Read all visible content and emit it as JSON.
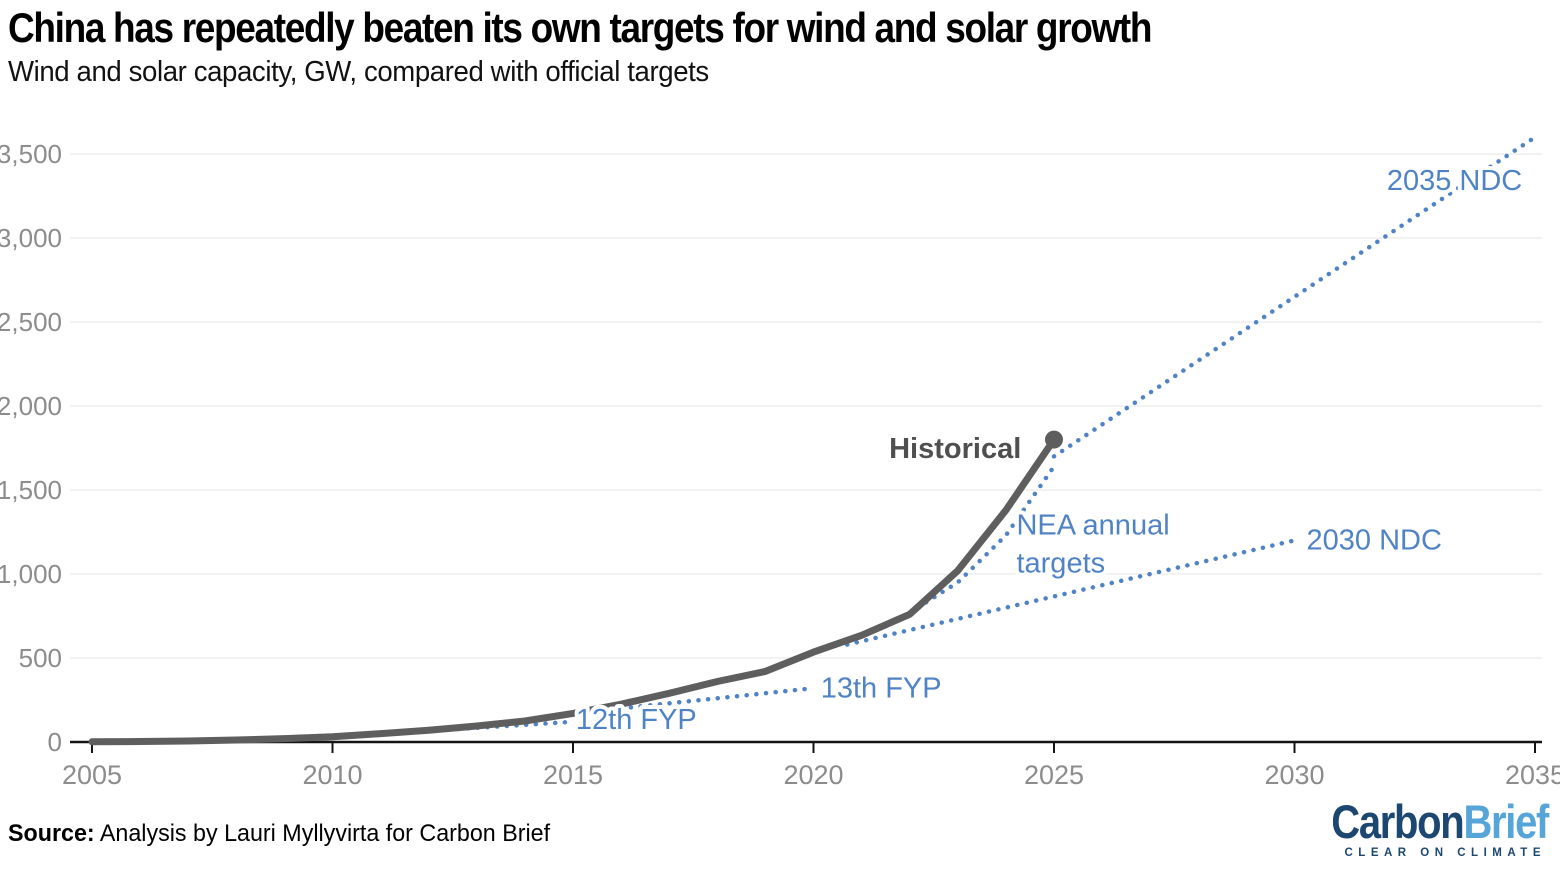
{
  "header": {
    "title": "China has repeatedly beaten its own targets for wind and solar growth",
    "subtitle": "Wind and solar capacity, GW, compared with official targets"
  },
  "footer": {
    "source_label": "Source:",
    "source_text": " Analysis by Lauri Myllyvirta for Carbon Brief"
  },
  "logo": {
    "part1": "Carbon",
    "part2": "Brief",
    "tagline": "CLEAR ON CLIMATE",
    "dark_color": "#1c4770",
    "light_color": "#55a5d9"
  },
  "chart_data": {
    "type": "line",
    "title": "China has repeatedly beaten its own targets for wind and solar growth",
    "subtitle": "Wind and solar capacity, GW, compared with official targets",
    "xlabel": "",
    "ylabel": "Wind and solar capacity, GW",
    "x_range": [
      2005,
      2035
    ],
    "y_range": [
      0,
      3500
    ],
    "grid": "horizontal",
    "legend": "inline-labels",
    "x_ticks": [
      {
        "v": 2005,
        "label": "2005"
      },
      {
        "v": 2010,
        "label": "2010"
      },
      {
        "v": 2015,
        "label": "2015"
      },
      {
        "v": 2020,
        "label": "2020"
      },
      {
        "v": 2025,
        "label": "2025"
      },
      {
        "v": 2030,
        "label": "2030"
      },
      {
        "v": 2035,
        "label": "2035"
      }
    ],
    "y_ticks": [
      {
        "v": 0,
        "label": "0"
      },
      {
        "v": 500,
        "label": "500"
      },
      {
        "v": 1000,
        "label": "1,000"
      },
      {
        "v": 1500,
        "label": "1,500"
      },
      {
        "v": 2000,
        "label": "2,000"
      },
      {
        "v": 2500,
        "label": "2,500"
      },
      {
        "v": 3000,
        "label": "3,000"
      },
      {
        "v": 3500,
        "label": "3,500"
      }
    ],
    "colors": {
      "historical": "#5e5e5e",
      "target_blue": "#5083c6",
      "gridline": "#eaeaea",
      "axis": "#141414",
      "tick_text": "#8c8c8c"
    },
    "series": [
      {
        "name": "12th FYP",
        "style": "dotted",
        "points": [
          [
            2010,
            30
          ],
          [
            2015,
            120
          ]
        ]
      },
      {
        "name": "13th FYP",
        "style": "dotted",
        "points": [
          [
            2015,
            170
          ],
          [
            2020,
            320
          ]
        ]
      },
      {
        "name": "NEA annual targets",
        "style": "dotted",
        "points": [
          [
            2022,
            770
          ],
          [
            2023,
            950
          ],
          [
            2024,
            1230
          ],
          [
            2025,
            1640
          ]
        ]
      },
      {
        "name": "2030 NDC",
        "style": "dotted",
        "points": [
          [
            2020.7,
            580
          ],
          [
            2030,
            1200
          ]
        ]
      },
      {
        "name": "2035 NDC",
        "style": "dotted",
        "points": [
          [
            2025,
            1700
          ],
          [
            2035,
            3600
          ]
        ]
      },
      {
        "name": "Historical",
        "style": "solid",
        "points": [
          [
            2005,
            1
          ],
          [
            2006,
            3
          ],
          [
            2007,
            6
          ],
          [
            2008,
            12
          ],
          [
            2009,
            20
          ],
          [
            2010,
            31
          ],
          [
            2011,
            50
          ],
          [
            2012,
            70
          ],
          [
            2013,
            95
          ],
          [
            2014,
            125
          ],
          [
            2015,
            170
          ],
          [
            2016,
            225
          ],
          [
            2017,
            290
          ],
          [
            2018,
            360
          ],
          [
            2019,
            420
          ],
          [
            2020,
            535
          ],
          [
            2021,
            635
          ],
          [
            2022,
            760
          ],
          [
            2023,
            1020
          ],
          [
            2024,
            1380
          ],
          [
            2025,
            1800
          ]
        ]
      }
    ],
    "endpoint": {
      "x": 2025,
      "y": 1800
    },
    "annotations": [
      {
        "id": "label-historical",
        "lines": [
          "Historical"
        ],
        "x": 2024.32,
        "gw": 1745,
        "anchor": "end",
        "bold": true,
        "color": "#4f4f4f"
      },
      {
        "id": "label-12th-fyp",
        "lines": [
          "12th FYP"
        ],
        "x": 2015.06,
        "gw": 130,
        "anchor": "start",
        "bold": false,
        "color": "#5083c6"
      },
      {
        "id": "label-13th-fyp",
        "lines": [
          "13th FYP"
        ],
        "x": 2020.15,
        "gw": 318,
        "anchor": "start",
        "bold": false,
        "color": "#5083c6"
      },
      {
        "id": "label-nea-annual-targets",
        "lines": [
          "NEA annual",
          "targets"
        ],
        "x": 2024.22,
        "gw": 1290,
        "anchor": "start",
        "bold": false,
        "color": "#5083c6"
      },
      {
        "id": "label-2030-ndc",
        "lines": [
          "2030 NDC"
        ],
        "x": 2030.25,
        "gw": 1200,
        "anchor": "start",
        "bold": false,
        "color": "#5083c6"
      },
      {
        "id": "label-2035-ndc",
        "lines": [
          "2035 NDC"
        ],
        "x": 2031.92,
        "gw": 3340,
        "anchor": "start",
        "bold": false,
        "color": "#5083c6"
      }
    ]
  }
}
